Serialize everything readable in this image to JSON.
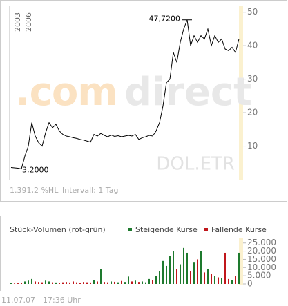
{
  "chart_data": [
    {
      "type": "line",
      "x_labels": [
        "2003",
        "2006"
      ],
      "watermark": [
        ".com",
        "direct"
      ],
      "symbol": "DOL.ETR",
      "footer": "1.391,2 %HL",
      "interval": "Intervall: 1 Tag",
      "color": "#000000",
      "values": [
        3.6,
        3.5,
        3.4,
        3.2,
        7,
        10,
        17,
        13,
        11,
        10,
        14,
        17,
        15.5,
        16.5,
        14.5,
        13.5,
        13,
        12.8,
        12.5,
        12.3,
        12,
        11.8,
        11.5,
        11.2,
        13.5,
        13,
        13.8,
        13.2,
        12.8,
        13.3,
        12.9,
        13.1,
        12.8,
        13,
        13.2,
        13,
        13.5,
        12,
        12.5,
        12.8,
        13.2,
        13,
        14.5,
        17,
        22,
        29,
        30,
        38,
        35,
        41,
        45,
        47.72,
        40,
        43,
        41,
        43,
        42,
        45,
        40,
        43,
        41,
        42,
        39,
        38.5,
        39.5,
        38,
        42
      ],
      "value_labels": [
        null,
        null,
        null,
        "3,2000",
        null,
        null,
        null,
        null,
        null,
        null,
        null,
        null,
        null,
        null,
        null,
        null,
        null,
        null,
        null,
        null,
        null,
        null,
        null,
        null,
        null,
        null,
        null,
        null,
        null,
        null,
        null,
        null,
        null,
        null,
        null,
        null,
        null,
        null,
        null,
        null,
        null,
        null,
        null,
        null,
        null,
        null,
        null,
        null,
        null,
        null,
        null,
        "47,7200",
        null,
        null,
        null,
        null,
        null,
        null,
        null,
        null,
        null,
        null,
        null,
        null,
        null,
        null,
        null
      ],
      "ylim": [
        0,
        52
      ],
      "yticks": [
        10,
        20,
        30,
        40,
        50
      ]
    },
    {
      "type": "bar",
      "title": "Stück-Volumen (rot-grün)",
      "series": [
        {
          "name": "Steigende Kurse",
          "color": "#1e7a2e",
          "values": [
            500,
            null,
            null,
            null,
            1500,
            2000,
            3000,
            null,
            null,
            null,
            2000,
            1500,
            null,
            900,
            null,
            null,
            null,
            null,
            null,
            null,
            null,
            null,
            null,
            null,
            2500,
            null,
            9000,
            null,
            null,
            1500,
            null,
            1000,
            null,
            1200,
            4500,
            null,
            2000,
            null,
            1500,
            1000,
            3000,
            null,
            5000,
            8000,
            14000,
            11000,
            17000,
            20000,
            null,
            12000,
            22000,
            19000,
            null,
            13000,
            null,
            20000,
            null,
            9000,
            null,
            5000,
            null,
            3500,
            null,
            null,
            2500,
            null,
            19000
          ]
        },
        {
          "name": "Fallende Kurse",
          "color": "#c0161b",
          "values": [
            null,
            300,
            400,
            800,
            null,
            null,
            null,
            1500,
            1200,
            1000,
            null,
            null,
            1000,
            null,
            800,
            1000,
            1200,
            900,
            1500,
            1000,
            800,
            1200,
            1000,
            900,
            null,
            1500,
            null,
            1200,
            1000,
            null,
            1300,
            null,
            1800,
            null,
            null,
            1500,
            null,
            1200,
            null,
            null,
            null,
            2500,
            null,
            null,
            null,
            null,
            null,
            null,
            9000,
            null,
            null,
            null,
            8000,
            null,
            15000,
            null,
            7000,
            null,
            6000,
            null,
            4000,
            null,
            19000,
            3000,
            null,
            5000,
            null
          ]
        }
      ],
      "ylim": [
        0,
        27000
      ],
      "yticks": [
        0,
        {
          "value": 5000,
          "label": "5.000"
        },
        {
          "value": 10000,
          "label": "10.000"
        },
        {
          "value": 15000,
          "label": "15.000"
        },
        {
          "value": 20000,
          "label": "20.000"
        },
        {
          "value": 25000,
          "label": "25.000"
        }
      ],
      "date": "11.07.07",
      "time": "17:36 Uhr"
    }
  ]
}
